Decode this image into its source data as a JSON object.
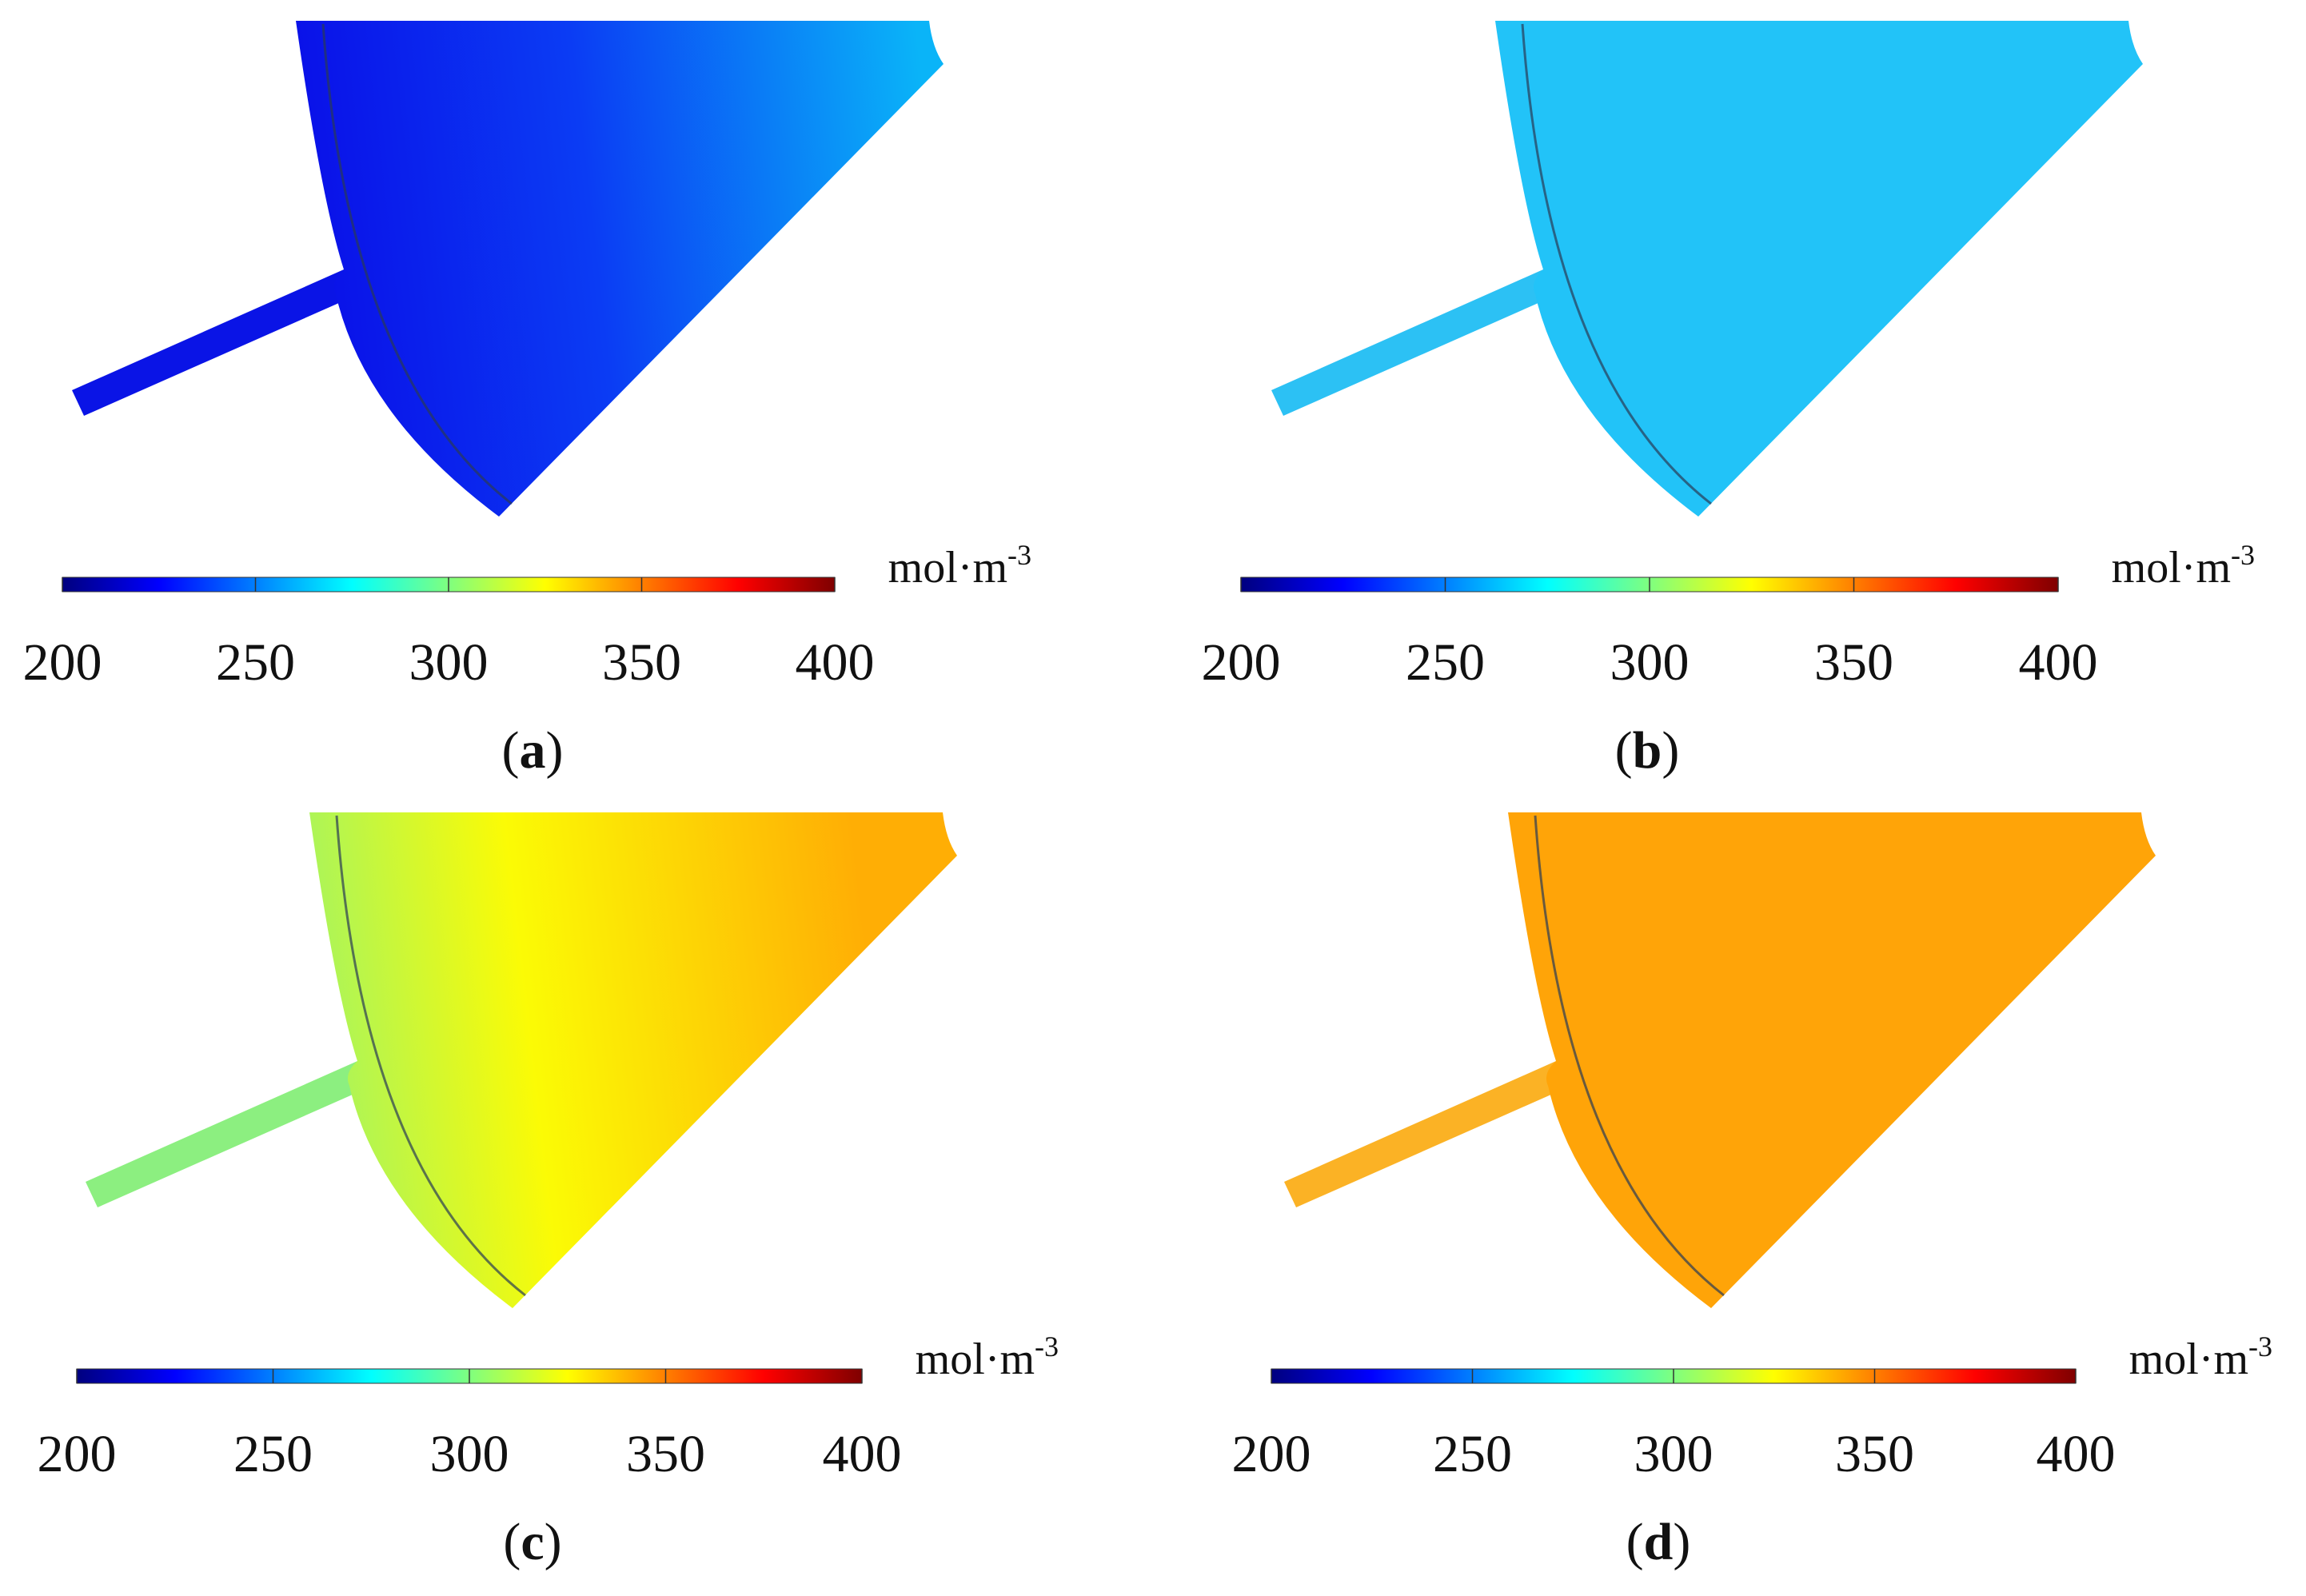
{
  "figure": {
    "colorbar": {
      "ticks": [
        "200",
        "250",
        "300",
        "350",
        "400"
      ],
      "unit": "mol·m",
      "unit_exponent": "-3",
      "colormap": [
        "#00007f",
        "#0000ff",
        "#007fff",
        "#00ffff",
        "#7fff7f",
        "#ffff00",
        "#ff7f00",
        "#ff0000",
        "#7f0000"
      ]
    },
    "panels": [
      {
        "id": "a",
        "caption_open": "(",
        "caption_letter": "a",
        "caption_close": ")",
        "grad_start": "#0a10e8",
        "grad_mid": "#0b3cf4",
        "grad_end": "#0ab4f8",
        "channel_color": "#0a14e6"
      },
      {
        "id": "b",
        "caption_open": "(",
        "caption_letter": "b",
        "caption_close": ")",
        "grad_start": "#22c3f8",
        "grad_mid": "#15f0f2",
        "grad_end": "#8eff6e",
        "channel_color": "#2cc1f4"
      },
      {
        "id": "c",
        "caption_open": "(",
        "caption_letter": "c",
        "caption_close": ")",
        "grad_start": "#8af27c",
        "grad_mid": "#fbfb05",
        "grad_end": "#ffae05",
        "channel_color": "#8cef80"
      },
      {
        "id": "d",
        "caption_open": "(",
        "caption_letter": "d",
        "caption_close": ")",
        "grad_start": "#ffa408",
        "grad_mid": "#ff2010",
        "grad_end": "#d00008",
        "channel_color": "#fbb225"
      }
    ]
  }
}
